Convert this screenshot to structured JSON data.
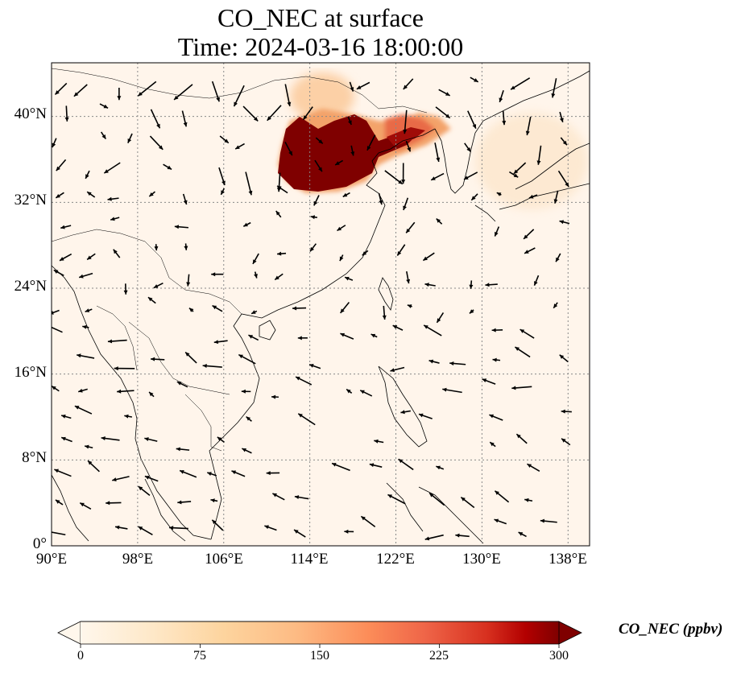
{
  "title": {
    "line1": "CO_NEC at surface",
    "line2": "Time: 2024-03-16 18:00:00"
  },
  "map": {
    "lon_range": [
      90,
      140
    ],
    "lat_range": [
      0,
      45
    ],
    "lat_ticks": [
      {
        "value": 0,
        "label": "0°"
      },
      {
        "value": 8,
        "label": "8°N"
      },
      {
        "value": 16,
        "label": "16°N"
      },
      {
        "value": 24,
        "label": "24°N"
      },
      {
        "value": 32,
        "label": "32°N"
      },
      {
        "value": 40,
        "label": "40°N"
      }
    ],
    "lon_ticks": [
      {
        "value": 90,
        "label": "90°E"
      },
      {
        "value": 98,
        "label": "98°E"
      },
      {
        "value": 106,
        "label": "106°E"
      },
      {
        "value": 114,
        "label": "114°E"
      },
      {
        "value": 122,
        "label": "122°E"
      },
      {
        "value": 130,
        "label": "130°E"
      },
      {
        "value": 138,
        "label": "138°E"
      }
    ],
    "gridlines": true,
    "background_color": "#fff5eb",
    "plume_color": "#7f0000"
  },
  "colorbar": {
    "label": "CO_NEC (ppbv)",
    "min": 0,
    "max": 300,
    "ticks": [
      "0",
      "75",
      "150",
      "225",
      "300"
    ],
    "colormap": "OrRd",
    "colors": [
      "#fff7ec",
      "#fdd49e",
      "#fdbb84",
      "#fc8d59",
      "#ef6548",
      "#d7301f",
      "#b30000",
      "#7f0000"
    ],
    "extend": "both"
  }
}
